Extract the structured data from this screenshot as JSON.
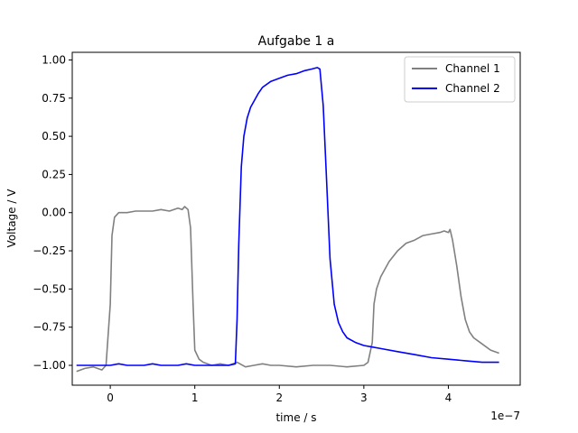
{
  "chart_data": {
    "type": "line",
    "title": "Aufgabe 1 a",
    "xlabel": "time / s",
    "ylabel": "Voltage / V",
    "x_offset_text": "1e−7",
    "xlim": [
      -0.45,
      4.85
    ],
    "ylim": [
      -1.13,
      1.05
    ],
    "x_ticks": [
      0,
      1,
      2,
      3,
      4
    ],
    "x_tick_labels": [
      "0",
      "1",
      "2",
      "3",
      "4"
    ],
    "y_ticks": [
      -1.0,
      -0.75,
      -0.5,
      -0.25,
      0.0,
      0.25,
      0.5,
      0.75,
      1.0
    ],
    "y_tick_labels": [
      "−1.00",
      "−0.75",
      "−0.50",
      "−0.25",
      "0.00",
      "0.25",
      "0.50",
      "0.75",
      "1.00"
    ],
    "grid": false,
    "legend_position": "top-right",
    "series": [
      {
        "name": "Channel 1",
        "color": "#808080",
        "x": [
          -0.4,
          -0.3,
          -0.2,
          -0.1,
          -0.05,
          0.0,
          0.02,
          0.05,
          0.1,
          0.2,
          0.3,
          0.4,
          0.5,
          0.6,
          0.7,
          0.8,
          0.85,
          0.88,
          0.92,
          0.95,
          0.98,
          1.0,
          1.05,
          1.1,
          1.2,
          1.3,
          1.4,
          1.5,
          1.6,
          1.7,
          1.8,
          1.9,
          2.0,
          2.2,
          2.4,
          2.6,
          2.8,
          3.0,
          3.05,
          3.1,
          3.12,
          3.15,
          3.2,
          3.3,
          3.4,
          3.5,
          3.6,
          3.7,
          3.8,
          3.9,
          3.95,
          4.0,
          4.02,
          4.05,
          4.1,
          4.15,
          4.2,
          4.25,
          4.3,
          4.4,
          4.5,
          4.6
        ],
        "y": [
          -1.04,
          -1.02,
          -1.01,
          -1.03,
          -1.0,
          -0.6,
          -0.15,
          -0.03,
          0.0,
          0.0,
          0.01,
          0.01,
          0.01,
          0.02,
          0.01,
          0.03,
          0.02,
          0.04,
          0.02,
          -0.1,
          -0.6,
          -0.9,
          -0.96,
          -0.98,
          -1.0,
          -0.99,
          -1.0,
          -0.98,
          -1.01,
          -1.0,
          -0.99,
          -1.0,
          -1.0,
          -1.01,
          -1.0,
          -1.0,
          -1.01,
          -1.0,
          -0.98,
          -0.85,
          -0.6,
          -0.5,
          -0.42,
          -0.32,
          -0.25,
          -0.2,
          -0.18,
          -0.15,
          -0.14,
          -0.13,
          -0.12,
          -0.13,
          -0.11,
          -0.18,
          -0.35,
          -0.55,
          -0.7,
          -0.78,
          -0.82,
          -0.86,
          -0.9,
          -0.92
        ]
      },
      {
        "name": "Channel 2",
        "color": "#0000ff",
        "x": [
          -0.4,
          -0.3,
          -0.2,
          -0.1,
          0.0,
          0.1,
          0.2,
          0.3,
          0.4,
          0.5,
          0.6,
          0.7,
          0.8,
          0.9,
          1.0,
          1.1,
          1.2,
          1.3,
          1.4,
          1.48,
          1.5,
          1.52,
          1.55,
          1.58,
          1.62,
          1.66,
          1.7,
          1.75,
          1.8,
          1.9,
          2.0,
          2.1,
          2.2,
          2.3,
          2.38,
          2.45,
          2.48,
          2.52,
          2.56,
          2.6,
          2.65,
          2.7,
          2.75,
          2.8,
          2.9,
          3.0,
          3.1,
          3.2,
          3.4,
          3.6,
          3.8,
          4.0,
          4.2,
          4.4,
          4.6
        ],
        "y": [
          -1.0,
          -1.0,
          -1.0,
          -1.0,
          -1.0,
          -0.99,
          -1.0,
          -1.0,
          -1.0,
          -0.99,
          -1.0,
          -1.0,
          -1.0,
          -0.99,
          -1.0,
          -1.0,
          -1.0,
          -1.0,
          -1.0,
          -0.99,
          -0.7,
          -0.2,
          0.3,
          0.5,
          0.62,
          0.69,
          0.73,
          0.78,
          0.82,
          0.86,
          0.88,
          0.9,
          0.91,
          0.93,
          0.94,
          0.95,
          0.94,
          0.7,
          0.2,
          -0.3,
          -0.6,
          -0.72,
          -0.78,
          -0.82,
          -0.85,
          -0.87,
          -0.88,
          -0.89,
          -0.91,
          -0.93,
          -0.95,
          -0.96,
          -0.97,
          -0.98,
          -0.98
        ]
      }
    ]
  }
}
